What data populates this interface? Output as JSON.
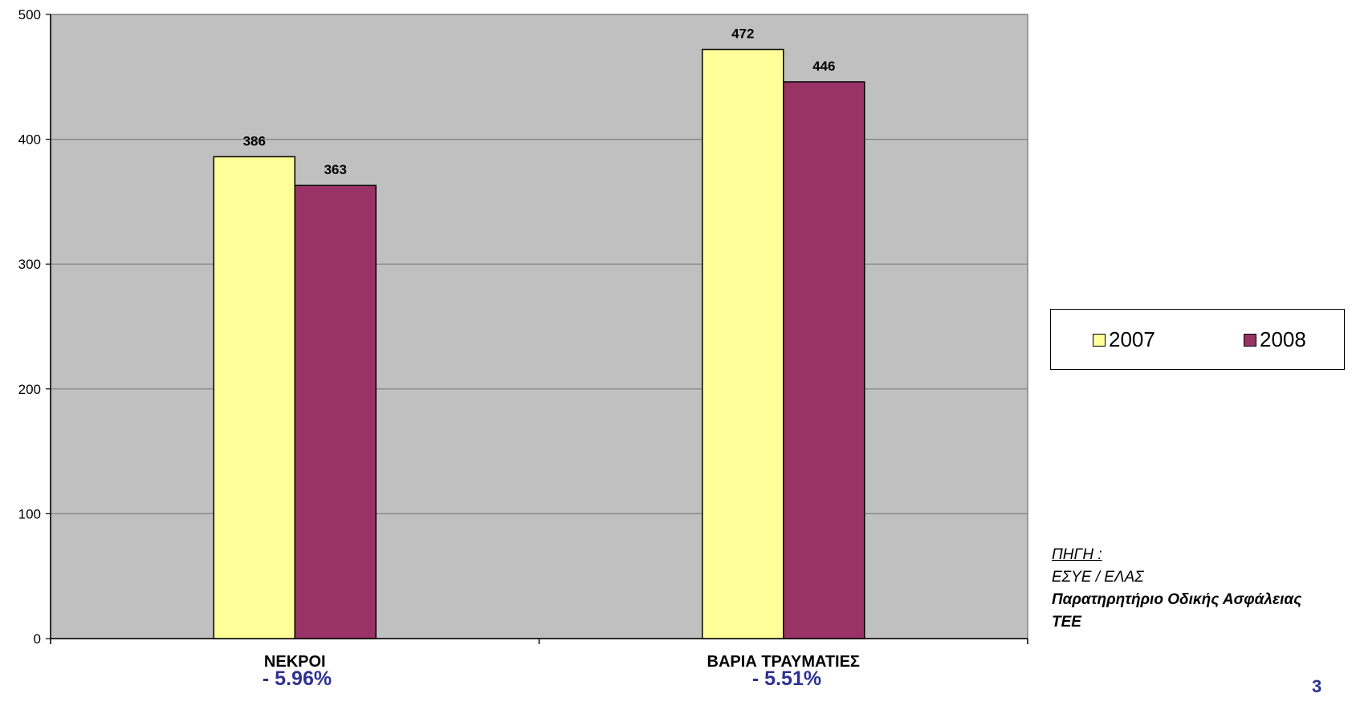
{
  "chart_data": {
    "type": "bar",
    "categories": [
      "ΝΕΚΡΟΙ",
      "ΒΑΡΙΑ ΤΡΑΥΜΑΤΙΕΣ"
    ],
    "series": [
      {
        "name": "2007",
        "values": [
          386,
          472
        ],
        "color": "#ffff99"
      },
      {
        "name": "2008",
        "values": [
          363,
          446
        ],
        "color": "#993366"
      }
    ],
    "ylim": [
      0,
      500
    ],
    "yticks": [
      0,
      100,
      200,
      300,
      400,
      500
    ],
    "grid": true,
    "plot_background": "#c0c0c0",
    "legend_position": "right",
    "changes": [
      "- 5.96%",
      "- 5.51%"
    ]
  },
  "source": {
    "title": "ΠΗΓΗ :",
    "line1": "ΕΣΥΕ / ΕΛΑΣ",
    "line2": "Παρατηρητήριο Οδικής Ασφάλειας",
    "line3": "ΤΕΕ"
  },
  "page_number": "3"
}
